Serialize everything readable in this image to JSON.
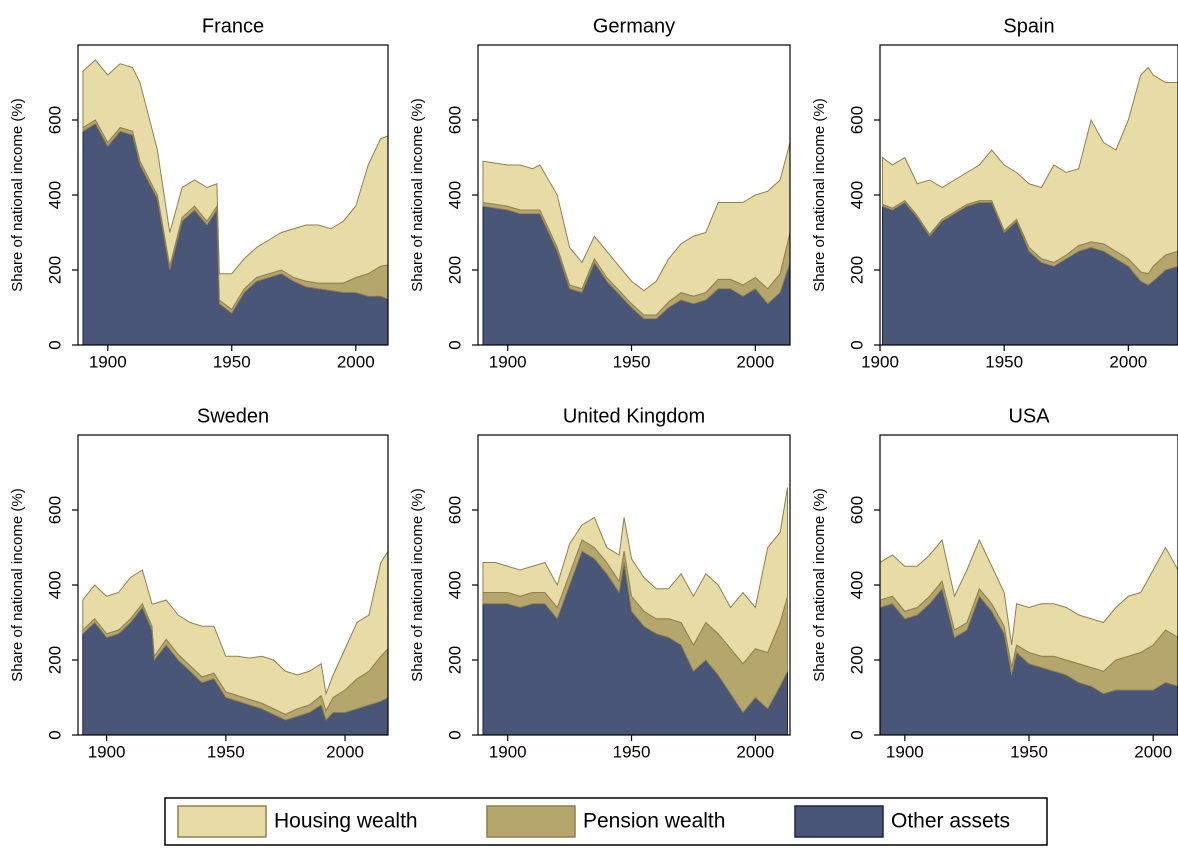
{
  "chart_data": [
    {
      "type": "area",
      "stacked": true,
      "title": "France",
      "y_label": "Share of national income (%)",
      "x": [
        1890,
        1895,
        1900,
        1905,
        1910,
        1913,
        1920,
        1925,
        1930,
        1935,
        1940,
        1944,
        1945,
        1950,
        1955,
        1960,
        1965,
        1970,
        1975,
        1980,
        1985,
        1990,
        1995,
        2000,
        2005,
        2010,
        2014
      ],
      "series": [
        {
          "name": "Housing wealth",
          "color": "#e8dca6",
          "values": [
            150,
            160,
            180,
            170,
            170,
            210,
            120,
            90,
            80,
            70,
            90,
            60,
            70,
            95,
            80,
            80,
            90,
            100,
            130,
            150,
            155,
            145,
            165,
            190,
            290,
            340,
            345
          ]
        },
        {
          "name": "Pension wealth",
          "color": "#b5a76c",
          "values": [
            10,
            10,
            10,
            10,
            10,
            10,
            10,
            10,
            10,
            10,
            10,
            10,
            10,
            10,
            10,
            10,
            10,
            10,
            10,
            15,
            15,
            20,
            25,
            40,
            60,
            80,
            95
          ]
        },
        {
          "name": "Other assets",
          "color": "#4a5677",
          "values": [
            570,
            590,
            530,
            570,
            560,
            480,
            390,
            200,
            330,
            360,
            320,
            360,
            110,
            85,
            140,
            170,
            180,
            190,
            170,
            155,
            150,
            145,
            140,
            140,
            130,
            130,
            120
          ]
        }
      ],
      "xlim": [
        1888,
        2013
      ],
      "ylim": [
        0,
        800
      ],
      "xticks": [
        1900,
        1950,
        2000
      ],
      "yticks": [
        0,
        200,
        400,
        600
      ]
    },
    {
      "type": "area",
      "stacked": true,
      "title": "Germany",
      "y_label": "Share of national income (%)",
      "x": [
        1890,
        1900,
        1905,
        1910,
        1913,
        1920,
        1925,
        1930,
        1935,
        1940,
        1950,
        1955,
        1960,
        1965,
        1970,
        1975,
        1980,
        1985,
        1990,
        1995,
        2000,
        2005,
        2010,
        2014
      ],
      "series": [
        {
          "name": "Housing wealth",
          "color": "#e8dca6",
          "values": [
            110,
            110,
            120,
            110,
            120,
            140,
            100,
            70,
            60,
            70,
            60,
            65,
            90,
            115,
            130,
            160,
            160,
            205,
            205,
            220,
            220,
            260,
            250,
            240
          ]
        },
        {
          "name": "Pension wealth",
          "color": "#b5a76c",
          "values": [
            10,
            10,
            10,
            10,
            10,
            10,
            10,
            10,
            10,
            10,
            10,
            10,
            10,
            15,
            20,
            20,
            20,
            25,
            25,
            30,
            30,
            40,
            50,
            80
          ]
        },
        {
          "name": "Other assets",
          "color": "#4a5677",
          "values": [
            370,
            360,
            350,
            350,
            350,
            250,
            150,
            140,
            220,
            170,
            100,
            70,
            70,
            100,
            120,
            110,
            120,
            150,
            150,
            130,
            150,
            110,
            140,
            220
          ]
        }
      ],
      "xlim": [
        1888,
        2014
      ],
      "ylim": [
        0,
        800
      ],
      "xticks": [
        1900,
        1950,
        2000
      ],
      "yticks": [
        0,
        200,
        400,
        600
      ]
    },
    {
      "type": "area",
      "stacked": true,
      "title": "Spain",
      "y_label": "Share of national income (%)",
      "x": [
        1901,
        1905,
        1910,
        1915,
        1920,
        1925,
        1930,
        1935,
        1940,
        1945,
        1950,
        1955,
        1960,
        1965,
        1970,
        1975,
        1980,
        1985,
        1990,
        1995,
        2000,
        2005,
        2008,
        2010,
        2015,
        2020
      ],
      "series": [
        {
          "name": "Housing wealth",
          "color": "#e8dca6",
          "values": [
            125,
            115,
            115,
            85,
            145,
            85,
            85,
            85,
            95,
            135,
            175,
            125,
            170,
            190,
            260,
            220,
            205,
            325,
            270,
            270,
            370,
            525,
            550,
            510,
            460,
            450
          ]
        },
        {
          "name": "Pension wealth",
          "color": "#b5a76c",
          "values": [
            5,
            5,
            5,
            5,
            5,
            5,
            5,
            5,
            5,
            5,
            5,
            5,
            10,
            10,
            10,
            10,
            15,
            15,
            20,
            20,
            20,
            25,
            30,
            40,
            40,
            40
          ]
        },
        {
          "name": "Other assets",
          "color": "#4a5677",
          "values": [
            370,
            360,
            380,
            340,
            290,
            330,
            350,
            370,
            380,
            380,
            300,
            330,
            250,
            220,
            210,
            230,
            250,
            260,
            250,
            230,
            210,
            170,
            160,
            170,
            200,
            210
          ]
        }
      ],
      "xlim": [
        1900,
        2020
      ],
      "ylim": [
        0,
        800
      ],
      "xticks": [
        1900,
        1950,
        2000
      ],
      "yticks": [
        0,
        200,
        400,
        600
      ]
    },
    {
      "type": "area",
      "stacked": true,
      "title": "Sweden",
      "y_label": "Share of national income (%)",
      "x": [
        1890,
        1895,
        1900,
        1905,
        1910,
        1915,
        1919,
        1920,
        1925,
        1930,
        1935,
        1940,
        1945,
        1950,
        1955,
        1960,
        1965,
        1970,
        1975,
        1980,
        1985,
        1990,
        1992,
        1995,
        2000,
        2005,
        2010,
        2015,
        2018
      ],
      "series": [
        {
          "name": "Housing wealth",
          "color": "#e8dca6",
          "values": [
            80,
            90,
            100,
            100,
            110,
            90,
            60,
            140,
            105,
            105,
            115,
            135,
            125,
            95,
            105,
            110,
            125,
            130,
            115,
            90,
            90,
            85,
            45,
            60,
            110,
            150,
            150,
            250,
            260
          ]
        },
        {
          "name": "Pension wealth",
          "color": "#b5a76c",
          "values": [
            10,
            10,
            10,
            10,
            10,
            10,
            10,
            10,
            15,
            15,
            15,
            15,
            15,
            15,
            15,
            15,
            15,
            15,
            15,
            20,
            20,
            25,
            25,
            40,
            60,
            80,
            90,
            120,
            130
          ]
        },
        {
          "name": "Other assets",
          "color": "#4a5677",
          "values": [
            270,
            300,
            260,
            270,
            300,
            340,
            280,
            200,
            240,
            200,
            170,
            140,
            150,
            100,
            90,
            80,
            70,
            55,
            40,
            50,
            60,
            80,
            40,
            60,
            60,
            70,
            80,
            90,
            100
          ]
        }
      ],
      "xlim": [
        1888,
        2018
      ],
      "ylim": [
        0,
        800
      ],
      "xticks": [
        1900,
        1950,
        2000
      ],
      "yticks": [
        0,
        200,
        400,
        600
      ]
    },
    {
      "type": "area",
      "stacked": true,
      "title": "United Kingdom",
      "y_label": "Share of national income (%)",
      "x": [
        1890,
        1895,
        1900,
        1905,
        1910,
        1915,
        1920,
        1925,
        1930,
        1935,
        1940,
        1945,
        1947,
        1950,
        1955,
        1960,
        1965,
        1970,
        1975,
        1980,
        1985,
        1990,
        1995,
        2000,
        2005,
        2010,
        2013
      ],
      "series": [
        {
          "name": "Housing wealth",
          "color": "#e8dca6",
          "values": [
            80,
            80,
            70,
            70,
            70,
            80,
            60,
            80,
            40,
            80,
            40,
            70,
            90,
            100,
            90,
            80,
            80,
            130,
            130,
            130,
            130,
            110,
            190,
            110,
            280,
            240,
            290
          ]
        },
        {
          "name": "Pension wealth",
          "color": "#b5a76c",
          "values": [
            30,
            30,
            30,
            30,
            30,
            30,
            30,
            30,
            30,
            30,
            30,
            30,
            30,
            40,
            40,
            40,
            50,
            60,
            70,
            100,
            110,
            120,
            130,
            130,
            150,
            170,
            200
          ]
        },
        {
          "name": "Other assets",
          "color": "#4a5677",
          "values": [
            350,
            350,
            350,
            340,
            350,
            350,
            310,
            400,
            490,
            470,
            430,
            380,
            460,
            330,
            290,
            270,
            260,
            240,
            170,
            200,
            160,
            110,
            60,
            100,
            70,
            130,
            170
          ]
        }
      ],
      "xlim": [
        1888,
        2014
      ],
      "ylim": [
        0,
        800
      ],
      "xticks": [
        1900,
        1950,
        2000
      ],
      "yticks": [
        0,
        200,
        400,
        600
      ]
    },
    {
      "type": "area",
      "stacked": true,
      "title": "USA",
      "y_label": "Share of national income (%)",
      "x": [
        1890,
        1895,
        1900,
        1905,
        1910,
        1915,
        1920,
        1925,
        1930,
        1935,
        1940,
        1943,
        1945,
        1950,
        1955,
        1960,
        1965,
        1970,
        1975,
        1980,
        1985,
        1990,
        1995,
        2000,
        2005,
        2010
      ],
      "series": [
        {
          "name": "Housing wealth",
          "color": "#e8dca6",
          "values": [
            100,
            110,
            120,
            110,
            110,
            110,
            90,
            140,
            130,
            100,
            90,
            60,
            110,
            120,
            140,
            140,
            140,
            130,
            130,
            130,
            140,
            160,
            160,
            200,
            220,
            180
          ]
        },
        {
          "name": "Pension wealth",
          "color": "#b5a76c",
          "values": [
            20,
            20,
            20,
            20,
            20,
            20,
            20,
            20,
            20,
            20,
            20,
            20,
            20,
            30,
            30,
            40,
            40,
            50,
            50,
            60,
            80,
            90,
            100,
            120,
            140,
            130
          ]
        },
        {
          "name": "Other assets",
          "color": "#4a5677",
          "values": [
            340,
            350,
            310,
            320,
            350,
            390,
            260,
            280,
            370,
            330,
            270,
            160,
            220,
            190,
            180,
            170,
            160,
            140,
            130,
            110,
            120,
            120,
            120,
            120,
            140,
            130
          ]
        }
      ],
      "xlim": [
        1890,
        2010
      ],
      "ylim": [
        0,
        800
      ],
      "xticks": [
        1900,
        1950,
        2000
      ],
      "yticks": [
        0,
        200,
        400,
        600
      ]
    }
  ]
}
